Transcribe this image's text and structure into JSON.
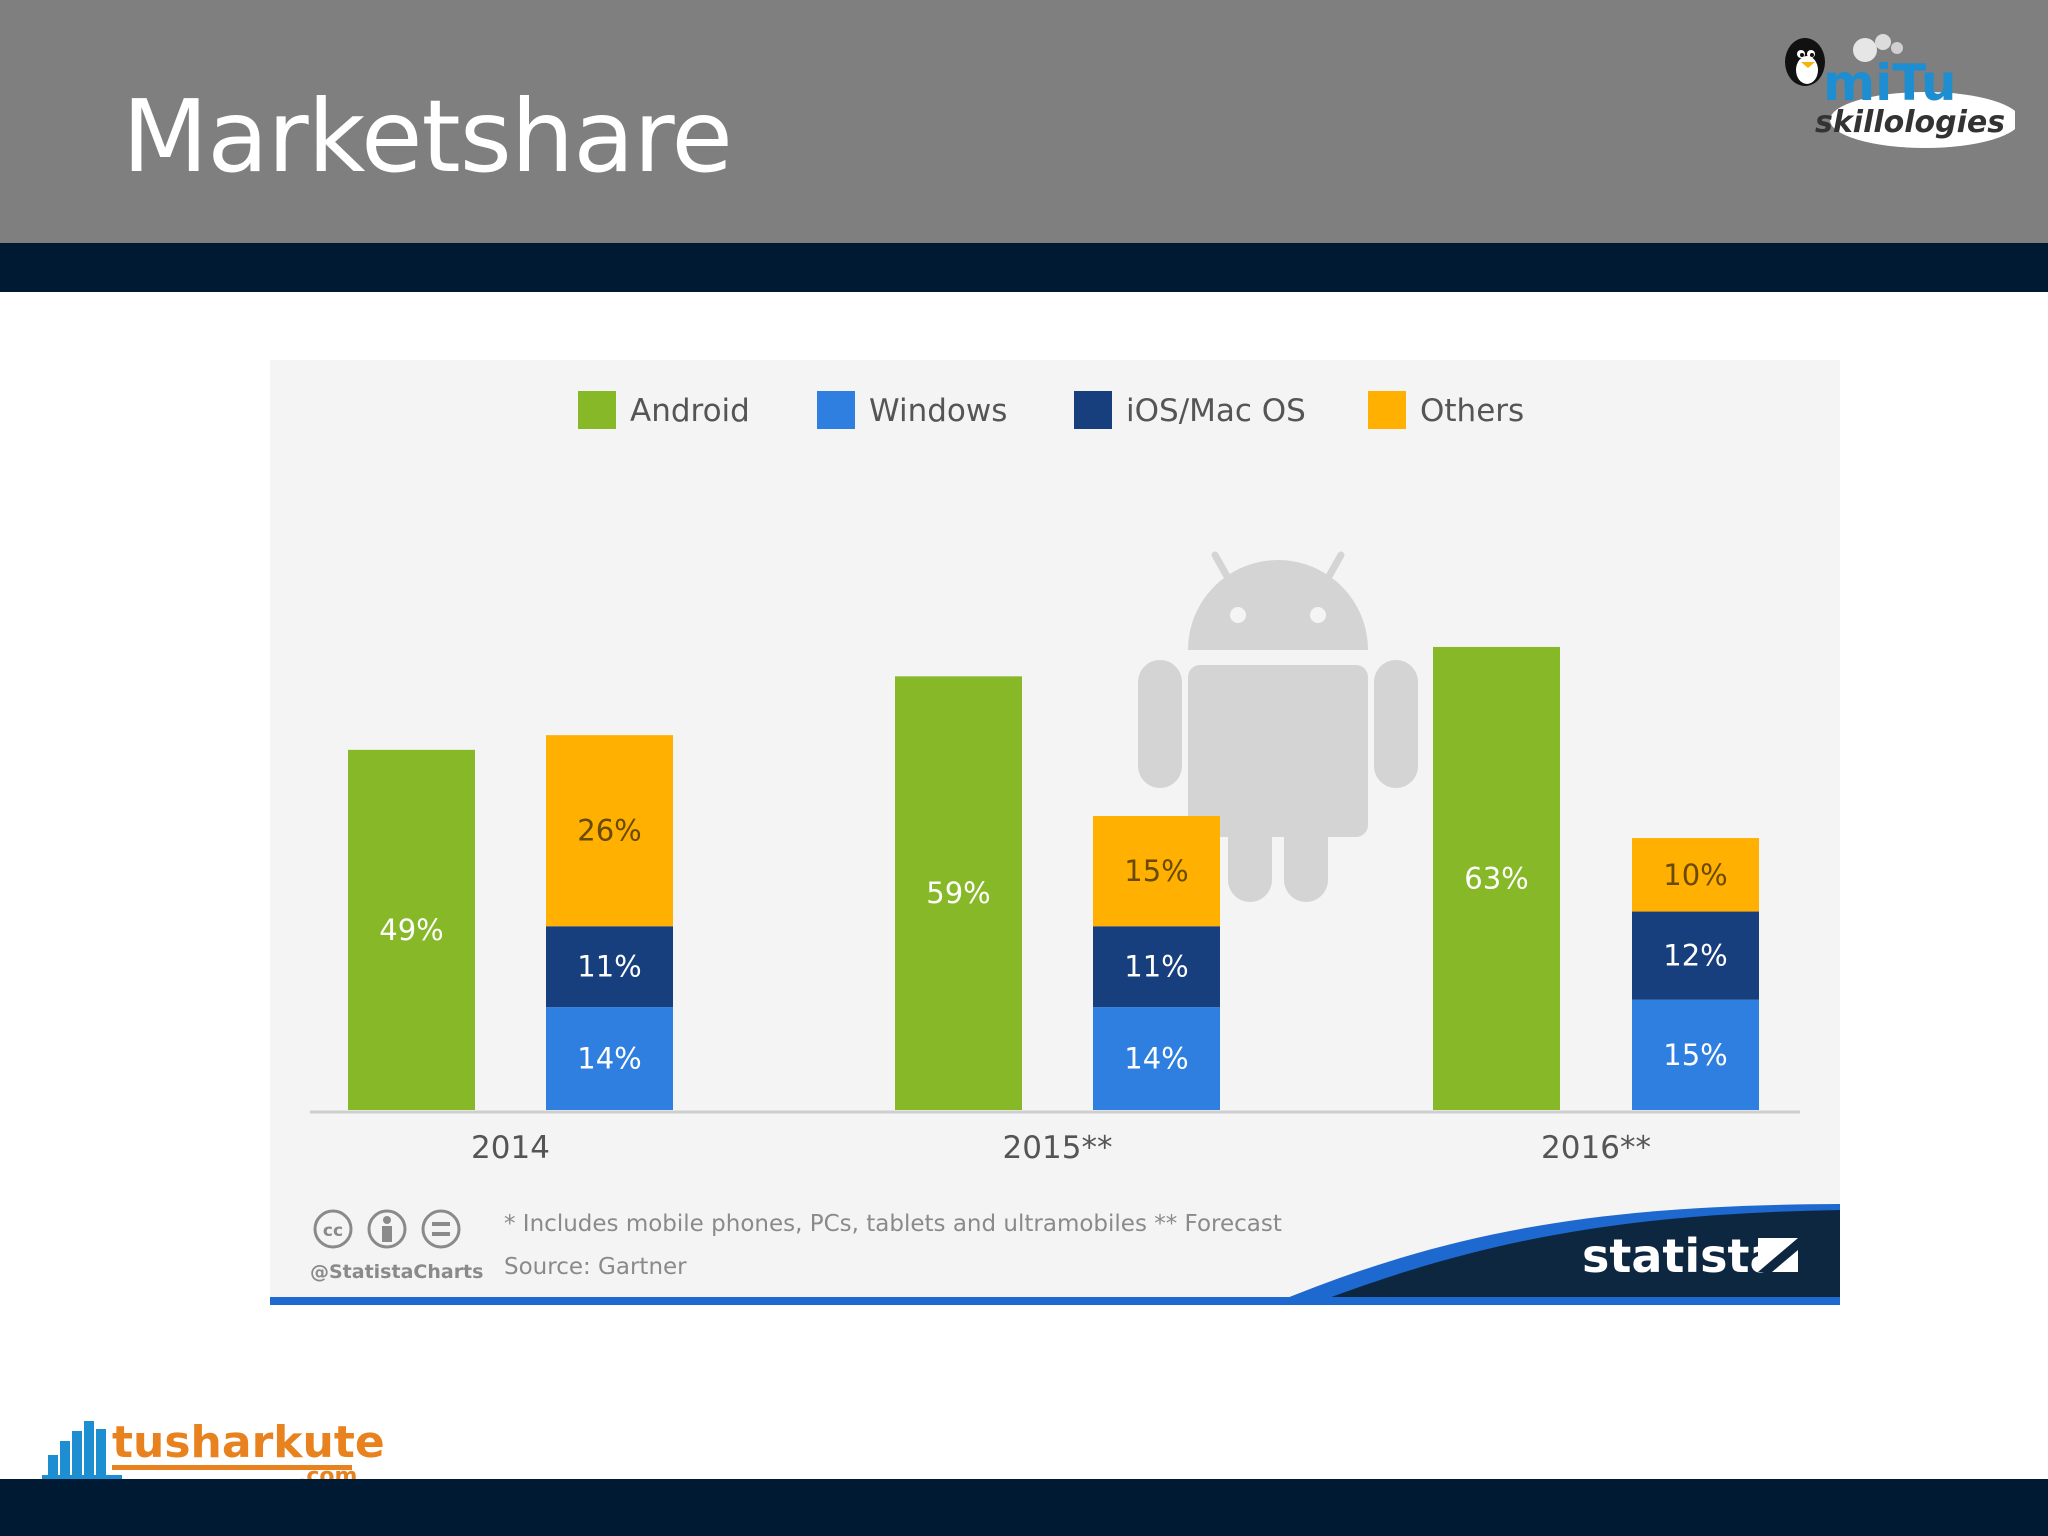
{
  "slide": {
    "title": "Marketshare"
  },
  "logos": {
    "mitu_top": "miTu",
    "mitu_bottom": "skillologies",
    "tusharkute_main": "tusharkute",
    "tusharkute_suffix": ".com"
  },
  "colors": {
    "header": "#7f7f7f",
    "band": "#001a33",
    "android": "#86b827",
    "windows": "#2e7fe0",
    "ios": "#173f7e",
    "others": "#ffb000",
    "axis_text": "#555555",
    "statista_dark": "#0e2741",
    "statista_blue": "#1d69d0"
  },
  "chart_data": {
    "type": "bar",
    "categories": [
      "2014",
      "2015**",
      "2016**"
    ],
    "legend": [
      "Android",
      "Windows",
      "iOS/Mac OS",
      "Others"
    ],
    "series": [
      {
        "name": "Android",
        "values": [
          49,
          59,
          63
        ],
        "labels": [
          "49%",
          "59%",
          "63%"
        ]
      },
      {
        "name": "Windows",
        "values": [
          14,
          14,
          15
        ],
        "labels": [
          "14%",
          "14%",
          "15%"
        ]
      },
      {
        "name": "iOS/Mac OS",
        "values": [
          11,
          11,
          12
        ],
        "labels": [
          "11%",
          "11%",
          "12%"
        ]
      },
      {
        "name": "Others",
        "values": [
          26,
          15,
          10
        ],
        "labels": [
          "26%",
          "15%",
          "10%"
        ]
      }
    ],
    "stacked_group": [
      "Windows",
      "iOS/Mac OS",
      "Others"
    ],
    "ylim": [
      0,
      70
    ],
    "footnote": "* Includes mobile phones, PCs, tablets and ultramobiles  ** Forecast",
    "source": "Source: Gartner",
    "handle": "@StatistaCharts",
    "brand": "statista"
  }
}
